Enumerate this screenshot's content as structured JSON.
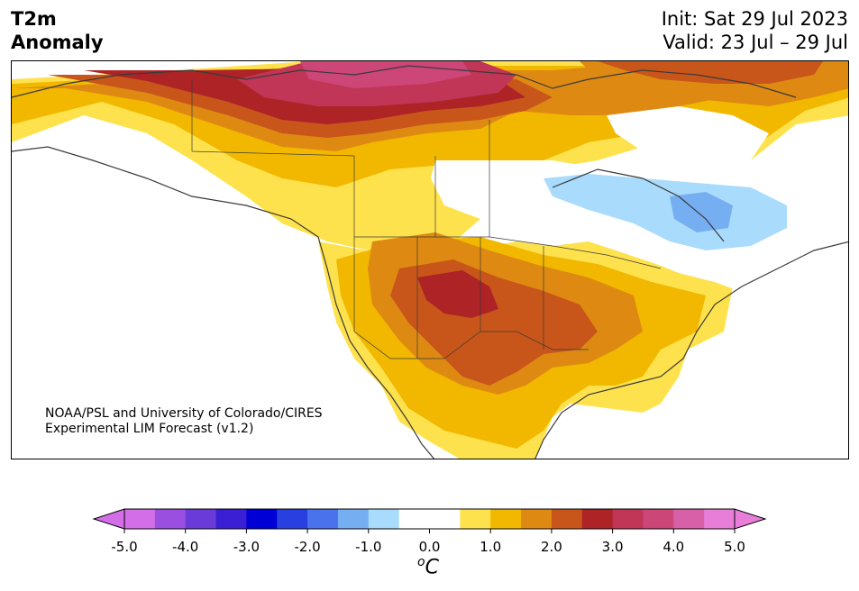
{
  "title": {
    "line1": "T2m",
    "line2": "Anomaly"
  },
  "dates": {
    "init": "Init: Sat 29 Jul 2023",
    "valid": "Valid: 23 Jul – 29 Jul"
  },
  "credit": {
    "line1": "NOAA/PSL and University of Colorado/CIRES",
    "line2": "Experimental LIM Forecast (v1.2)"
  },
  "colorbar": {
    "ticks": [
      "-5.0",
      "-4.0",
      "-3.0",
      "-2.0",
      "-1.0",
      "0.0",
      "1.0",
      "2.0",
      "3.0",
      "4.0",
      "5.0"
    ],
    "units": "C",
    "units_sup": "o",
    "colors": [
      "#d46ee8",
      "#9b4fe0",
      "#6a3bd8",
      "#3a1fd4",
      "#0000d6",
      "#2a3fe0",
      "#4a72ec",
      "#76aef2",
      "#a9dbfc",
      "#ffffff",
      "#ffffff",
      "#fee24d",
      "#f2b800",
      "#de8a12",
      "#c8561a",
      "#ad2326",
      "#c13656",
      "#cc4678",
      "#d860a8",
      "#e87ed8"
    ],
    "extend_low_color": "#d46ee8",
    "extend_high_color": "#e87ed8"
  }
}
